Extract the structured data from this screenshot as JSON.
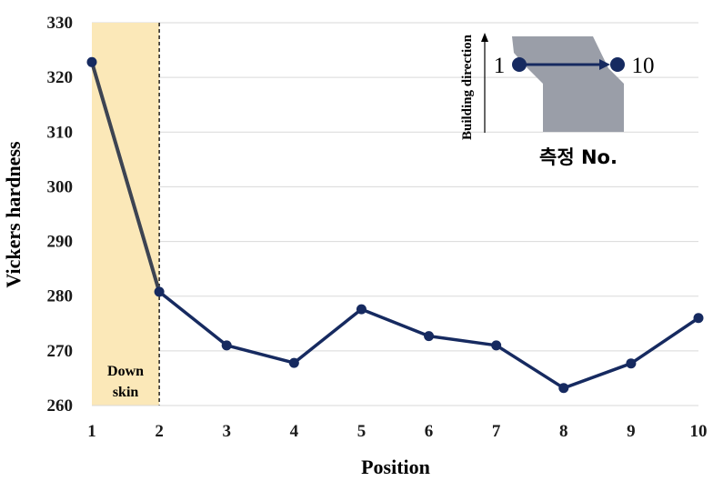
{
  "chart_data": {
    "type": "line",
    "title": "",
    "xlabel": "Position",
    "ylabel": "Vickers hardness",
    "xlim": [
      1,
      10
    ],
    "ylim": [
      260,
      330
    ],
    "x_ticks": [
      "1",
      "2",
      "3",
      "4",
      "5",
      "6",
      "7",
      "8",
      "9",
      "10"
    ],
    "y_ticks": [
      "260",
      "270",
      "280",
      "290",
      "300",
      "310",
      "320",
      "330"
    ],
    "grid": "horizontal",
    "legend": "none",
    "series": [
      {
        "x": [
          1,
          2,
          3,
          4,
          5,
          6,
          7,
          8,
          9,
          10
        ],
        "values": [
          322.8,
          280.8,
          271.0,
          267.8,
          277.6,
          272.7,
          271.0,
          263.2,
          267.7,
          276.0
        ],
        "color": "#162a60"
      }
    ],
    "highlight": {
      "x_from": 1,
      "x_to": 2,
      "color": "#fbe8b8",
      "label_line1": "Down",
      "label_line2": "skin"
    },
    "inset": {
      "axis_label": "Building direction",
      "start_label": "1",
      "end_label": "10",
      "caption": "측정 No.",
      "shape_color": "#9a9ea8",
      "arrow_color": "#162a60"
    }
  }
}
